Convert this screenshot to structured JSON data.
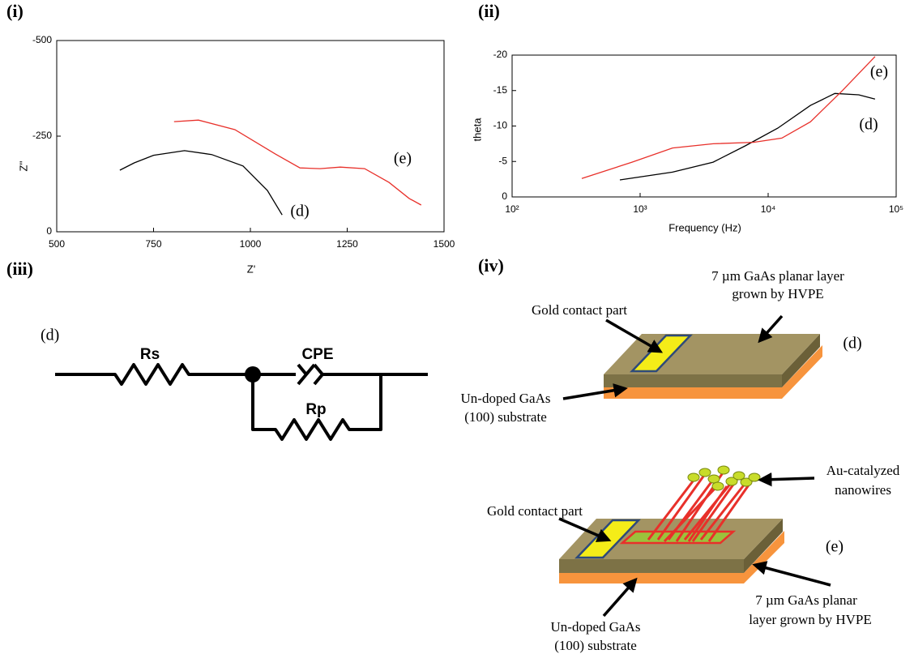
{
  "panels": [
    "(i)",
    "(ii)",
    "(iii)",
    "(iv)"
  ],
  "chart_data": [
    {
      "type": "line",
      "x_label": "Z'",
      "y_label": "Z''",
      "xlim": [
        500,
        1500
      ],
      "xticks": [
        500,
        750,
        1000,
        1250,
        1500
      ],
      "ylim": [
        0,
        -500
      ],
      "yticks": [
        -500,
        -250,
        0
      ],
      "series": [
        {
          "name": "(d)",
          "color": "#000000",
          "x": [
            663,
            700,
            750,
            830,
            900,
            981,
            1044,
            1082
          ],
          "values": [
            -161,
            -180,
            -200,
            -212,
            -202,
            -172,
            -108,
            -44
          ]
        },
        {
          "name": "(e)",
          "color": "#e8302a",
          "x": [
            803,
            866,
            960,
            1065,
            1128,
            1180,
            1232,
            1295,
            1358,
            1410,
            1441
          ],
          "values": [
            -288,
            -292,
            -267,
            -203,
            -167,
            -165,
            -169,
            -165,
            -129,
            -87,
            -70
          ]
        }
      ],
      "annotations": [
        "(d)",
        "(e)"
      ]
    },
    {
      "type": "line",
      "x_label": "Frequency (Hz)",
      "y_label": "theta",
      "xscale": "log",
      "xlim": [
        100,
        100000
      ],
      "xticks": [
        {
          "value": 100,
          "label": "10²"
        },
        {
          "value": 1000,
          "label": "10³"
        },
        {
          "value": 10000,
          "label": "10⁴"
        },
        {
          "value": 100000,
          "label": "10⁵"
        }
      ],
      "ylim": [
        0,
        -20
      ],
      "yticks": [
        0,
        -5,
        -10,
        -15,
        -20
      ],
      "series": [
        {
          "name": "(d)",
          "color": "#000000",
          "x": [
            695,
            1790,
            3720,
            6620,
            11900,
            21400,
            33200,
            51000,
            68400
          ],
          "values": [
            -2.4,
            -3.5,
            -4.9,
            -7.2,
            -9.7,
            -12.9,
            -14.6,
            -14.4,
            -13.8
          ]
        },
        {
          "name": "(e)",
          "color": "#e8302a",
          "x": [
            350,
            865,
            1790,
            3720,
            7690,
            12800,
            21400,
            38000,
            68400
          ],
          "values": [
            -2.6,
            -4.9,
            -6.9,
            -7.5,
            -7.7,
            -8.3,
            -10.6,
            -15,
            -19.8
          ]
        }
      ],
      "annotations": [
        "(e)",
        "(d)"
      ]
    }
  ],
  "circuit": {
    "label": "(d)",
    "components": [
      "Rs",
      "CPE",
      "Rp"
    ]
  },
  "devices": [
    {
      "label": "(d)",
      "layer": [
        "7 µm GaAs planar layer",
        "grown by HVPE"
      ],
      "contact": "Gold contact part",
      "substrate": [
        "Un-doped GaAs",
        "(100) substrate"
      ]
    },
    {
      "label": "(e)",
      "layer": [
        "7 µm GaAs planar",
        "layer grown by HVPE"
      ],
      "contact": "Gold contact part",
      "substrate": [
        "Un-doped GaAs",
        "(100) substrate"
      ],
      "wires": [
        "Au-catalyzed",
        "nanowires"
      ]
    }
  ]
}
